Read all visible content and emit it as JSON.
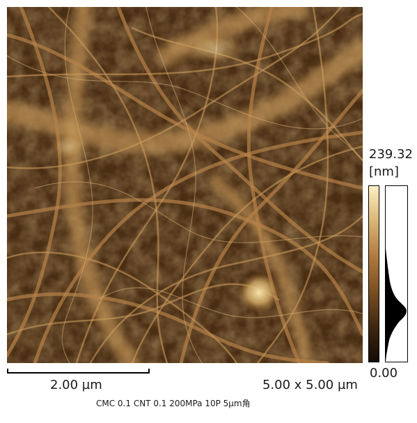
{
  "image": {
    "subject": "afm-height-map",
    "colormap": [
      "#140b03",
      "#3f2710",
      "#7a4f22",
      "#b07a3e",
      "#d8b674",
      "#fff0c4"
    ]
  },
  "colorbar": {
    "max_label": "239.32",
    "unit_label": "[nm]",
    "min_label": "0.00"
  },
  "scale_bar": {
    "label": "2.00 µm"
  },
  "scan_size": {
    "label": "5.00 x 5.00 µm"
  },
  "caption": {
    "text": "CMC 0.1 CNT 0.1 200MPa 10P 5µm角"
  }
}
